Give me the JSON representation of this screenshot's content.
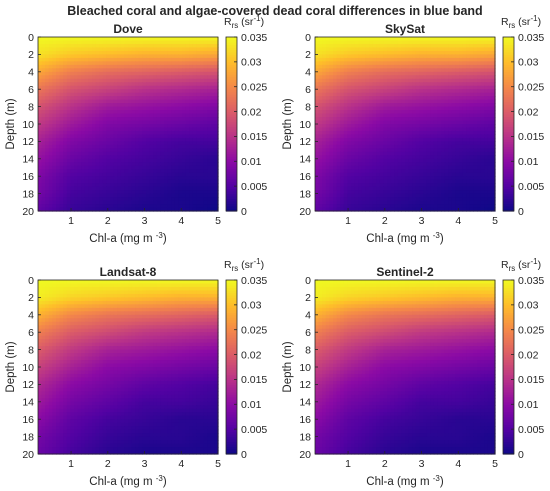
{
  "figure": {
    "title": "Bleached coral and algae-covered dead coral differences in blue band"
  },
  "panels": [
    {
      "title": "Dove"
    },
    {
      "title": "SkySat"
    },
    {
      "title": "Landsat-8"
    },
    {
      "title": "Sentinel-2"
    }
  ],
  "axes": {
    "xlabel": "Chl-a (mg m",
    "xlabel_sup": "-3",
    "xlabel_close": ")",
    "ylabel": "Depth (m)",
    "xticks": [
      "1",
      "2",
      "3",
      "4",
      "5"
    ],
    "yticks": [
      "0",
      "2",
      "4",
      "6",
      "8",
      "10",
      "12",
      "14",
      "16",
      "18",
      "20"
    ]
  },
  "colorbar": {
    "label_main": "R",
    "label_sub": "rs",
    "label_unit": "(sr",
    "label_sup": "-1",
    "label_close": ")",
    "ticks": [
      "0",
      "0.005",
      "0.01",
      "0.015",
      "0.02",
      "0.025",
      "0.03",
      "0.035"
    ],
    "colormap": "plasma",
    "colors": [
      "#0d0887",
      "#5302a3",
      "#8b0aa5",
      "#b83289",
      "#db5c68",
      "#f48849",
      "#febd2a",
      "#f0f921"
    ]
  },
  "chart_data": [
    {
      "type": "heatmap",
      "title": "Dove",
      "x": {
        "label": "Chl-a (mg m-3)",
        "range": [
          0.1,
          5
        ]
      },
      "y": {
        "label": "Depth (m)",
        "range": [
          0,
          20
        ],
        "reversed": true
      },
      "value_range": [
        0,
        0.035
      ],
      "cells": [
        [
          0.035,
          0.035,
          0.035,
          0.035,
          0.035,
          0.035
        ],
        [
          0.033,
          0.031,
          0.03,
          0.029,
          0.029,
          0.028
        ],
        [
          0.028,
          0.024,
          0.022,
          0.021,
          0.02,
          0.019
        ],
        [
          0.023,
          0.019,
          0.017,
          0.015,
          0.014,
          0.013
        ],
        [
          0.019,
          0.015,
          0.012,
          0.011,
          0.01,
          0.009
        ],
        [
          0.016,
          0.012,
          0.009,
          0.008,
          0.007,
          0.006
        ],
        [
          0.013,
          0.009,
          0.007,
          0.005,
          0.004,
          0.004
        ],
        [
          0.011,
          0.007,
          0.005,
          0.004,
          0.003,
          0.002
        ],
        [
          0.009,
          0.005,
          0.004,
          0.003,
          0.002,
          0.002
        ],
        [
          0.008,
          0.004,
          0.003,
          0.002,
          0.001,
          0.001
        ],
        [
          0.006,
          0.003,
          0.002,
          0.001,
          0.001,
          0.0
        ]
      ],
      "cell_rows_depth": [
        0,
        2,
        4,
        6,
        8,
        10,
        12,
        14,
        16,
        18,
        20
      ],
      "cell_cols_chl": [
        0.1,
        1,
        2,
        3,
        4,
        5
      ]
    },
    {
      "type": "heatmap",
      "title": "SkySat",
      "x": {
        "label": "Chl-a (mg m-3)",
        "range": [
          0.1,
          5
        ]
      },
      "y": {
        "label": "Depth (m)",
        "range": [
          0,
          20
        ],
        "reversed": true
      },
      "value_range": [
        0,
        0.035
      ],
      "cells": [
        [
          0.035,
          0.035,
          0.035,
          0.035,
          0.035,
          0.035
        ],
        [
          0.033,
          0.031,
          0.03,
          0.029,
          0.029,
          0.028
        ],
        [
          0.028,
          0.024,
          0.022,
          0.021,
          0.02,
          0.019
        ],
        [
          0.023,
          0.019,
          0.017,
          0.015,
          0.014,
          0.013
        ],
        [
          0.019,
          0.015,
          0.012,
          0.011,
          0.01,
          0.009
        ],
        [
          0.016,
          0.012,
          0.009,
          0.008,
          0.007,
          0.006
        ],
        [
          0.013,
          0.009,
          0.007,
          0.005,
          0.004,
          0.004
        ],
        [
          0.011,
          0.007,
          0.005,
          0.004,
          0.003,
          0.002
        ],
        [
          0.009,
          0.005,
          0.004,
          0.003,
          0.002,
          0.002
        ],
        [
          0.008,
          0.004,
          0.003,
          0.002,
          0.001,
          0.001
        ],
        [
          0.006,
          0.003,
          0.002,
          0.001,
          0.001,
          0.0
        ]
      ],
      "cell_rows_depth": [
        0,
        2,
        4,
        6,
        8,
        10,
        12,
        14,
        16,
        18,
        20
      ],
      "cell_cols_chl": [
        0.1,
        1,
        2,
        3,
        4,
        5
      ]
    },
    {
      "type": "heatmap",
      "title": "Landsat-8",
      "x": {
        "label": "Chl-a (mg m-3)",
        "range": [
          0.1,
          5
        ]
      },
      "y": {
        "label": "Depth (m)",
        "range": [
          0,
          20
        ],
        "reversed": true
      },
      "value_range": [
        0,
        0.035
      ],
      "cells": [
        [
          0.035,
          0.035,
          0.035,
          0.035,
          0.035,
          0.035
        ],
        [
          0.034,
          0.032,
          0.031,
          0.03,
          0.029,
          0.029
        ],
        [
          0.029,
          0.025,
          0.023,
          0.022,
          0.021,
          0.02
        ],
        [
          0.024,
          0.02,
          0.018,
          0.016,
          0.015,
          0.014
        ],
        [
          0.02,
          0.016,
          0.013,
          0.012,
          0.011,
          0.01
        ],
        [
          0.017,
          0.013,
          0.01,
          0.009,
          0.008,
          0.007
        ],
        [
          0.014,
          0.01,
          0.008,
          0.006,
          0.005,
          0.004
        ],
        [
          0.012,
          0.008,
          0.006,
          0.004,
          0.004,
          0.003
        ],
        [
          0.01,
          0.006,
          0.004,
          0.003,
          0.002,
          0.002
        ],
        [
          0.008,
          0.005,
          0.003,
          0.002,
          0.002,
          0.001
        ],
        [
          0.007,
          0.004,
          0.002,
          0.001,
          0.001,
          0.001
        ]
      ],
      "cell_rows_depth": [
        0,
        2,
        4,
        6,
        8,
        10,
        12,
        14,
        16,
        18,
        20
      ],
      "cell_cols_chl": [
        0.1,
        1,
        2,
        3,
        4,
        5
      ]
    },
    {
      "type": "heatmap",
      "title": "Sentinel-2",
      "x": {
        "label": "Chl-a (mg m-3)",
        "range": [
          0.1,
          5
        ]
      },
      "y": {
        "label": "Depth (m)",
        "range": [
          0,
          20
        ],
        "reversed": true
      },
      "value_range": [
        0,
        0.035
      ],
      "cells": [
        [
          0.035,
          0.035,
          0.035,
          0.035,
          0.035,
          0.035
        ],
        [
          0.034,
          0.032,
          0.031,
          0.03,
          0.029,
          0.029
        ],
        [
          0.029,
          0.025,
          0.023,
          0.022,
          0.021,
          0.02
        ],
        [
          0.024,
          0.02,
          0.018,
          0.016,
          0.015,
          0.014
        ],
        [
          0.02,
          0.016,
          0.013,
          0.012,
          0.011,
          0.01
        ],
        [
          0.017,
          0.013,
          0.01,
          0.009,
          0.008,
          0.007
        ],
        [
          0.014,
          0.01,
          0.008,
          0.006,
          0.005,
          0.004
        ],
        [
          0.012,
          0.008,
          0.006,
          0.004,
          0.004,
          0.003
        ],
        [
          0.01,
          0.006,
          0.004,
          0.003,
          0.002,
          0.002
        ],
        [
          0.008,
          0.005,
          0.003,
          0.002,
          0.002,
          0.001
        ],
        [
          0.007,
          0.004,
          0.002,
          0.001,
          0.001,
          0.001
        ]
      ],
      "cell_rows_depth": [
        0,
        2,
        4,
        6,
        8,
        10,
        12,
        14,
        16,
        18,
        20
      ],
      "cell_cols_chl": [
        0.1,
        1,
        2,
        3,
        4,
        5
      ]
    }
  ]
}
